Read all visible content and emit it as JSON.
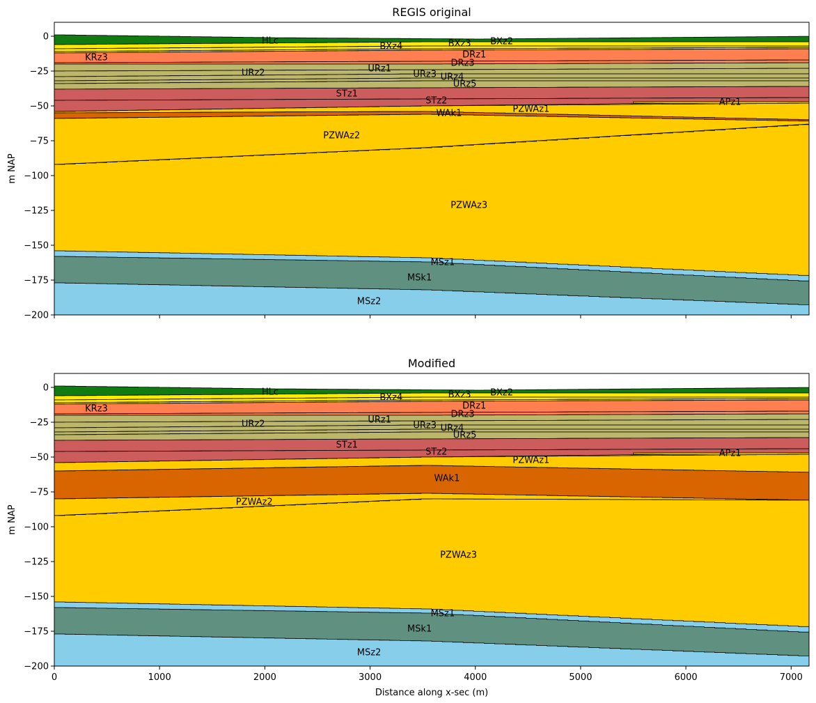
{
  "chart_data": [
    {
      "type": "area",
      "title": "REGIS original",
      "xlabel": "",
      "ylabel": "m NAP",
      "xlim": [
        0,
        7170
      ],
      "ylim": [
        -200,
        10
      ],
      "xticks": [
        0,
        1000,
        2000,
        3000,
        4000,
        5000,
        6000,
        7000
      ],
      "xtick_labels": [],
      "yticks": [
        0,
        -25,
        -50,
        -75,
        -100,
        -125,
        -150,
        -175,
        -200
      ],
      "ytick_labels": [
        "0",
        "−25",
        "−50",
        "−75",
        "−100",
        "−125",
        "−150",
        "−175",
        "−200"
      ],
      "layers": [
        {
          "name": "HLc",
          "color": "#117a11",
          "x": [
            0,
            2000,
            4000,
            7170
          ],
          "top": [
            1,
            -1,
            -2,
            0
          ],
          "bottom": [
            -6,
            -5,
            -4,
            -4
          ]
        },
        {
          "name": "BXz2",
          "color": "#ffeb00",
          "x": [
            0,
            3500,
            7170
          ],
          "top": [
            -6,
            -4,
            -4
          ],
          "bottom": [
            -9,
            -7,
            -7
          ]
        },
        {
          "name": "BXz3",
          "color": "#ffeb00",
          "x": [
            0,
            3500,
            7170
          ],
          "top": [
            -9,
            -7,
            -7
          ],
          "bottom": [
            -11,
            -9,
            -8
          ]
        },
        {
          "name": "BXz4",
          "color": "#ffeb00",
          "x": [
            0,
            3500,
            7170
          ],
          "top": [
            -11,
            -9,
            -8
          ],
          "bottom": [
            -12,
            -10,
            -9
          ]
        },
        {
          "name": "KRz3",
          "color": "#b03060",
          "x": [
            0,
            1000
          ],
          "top": [
            -12,
            -12
          ],
          "bottom": [
            -19,
            -15
          ]
        },
        {
          "name": "DRz1",
          "color": "#ff7f50",
          "x": [
            0,
            3500,
            7170
          ],
          "top": [
            -12,
            -10,
            -9
          ],
          "bottom": [
            -19,
            -18,
            -17
          ]
        },
        {
          "name": "DRz3",
          "color": "#ff7f50",
          "x": [
            0,
            3500,
            7170
          ],
          "top": [
            -19,
            -18,
            -17
          ],
          "bottom": [
            -20,
            -20,
            -19
          ]
        },
        {
          "name": "URz1",
          "color": "#bdb76b",
          "x": [
            0,
            3500,
            7170
          ],
          "top": [
            -20,
            -20,
            -19
          ],
          "bottom": [
            -25,
            -24,
            -23
          ]
        },
        {
          "name": "URz2",
          "color": "#bdb76b",
          "x": [
            0,
            3500,
            7170
          ],
          "top": [
            -25,
            -24,
            -23
          ],
          "bottom": [
            -29,
            -27,
            -27
          ]
        },
        {
          "name": "URz3",
          "color": "#bdb76b",
          "x": [
            0,
            3500,
            7170
          ],
          "top": [
            -29,
            -27,
            -27
          ],
          "bottom": [
            -32,
            -30,
            -30
          ]
        },
        {
          "name": "URz4",
          "color": "#bdb76b",
          "x": [
            0,
            3500,
            7170
          ],
          "top": [
            -32,
            -30,
            -30
          ],
          "bottom": [
            -34,
            -32,
            -32
          ]
        },
        {
          "name": "URz5",
          "color": "#bdb76b",
          "x": [
            0,
            3500,
            7170
          ],
          "top": [
            -34,
            -32,
            -32
          ],
          "bottom": [
            -38,
            -37,
            -36
          ]
        },
        {
          "name": "STz1",
          "color": "#cd5c5c",
          "x": [
            0,
            3500,
            7170
          ],
          "top": [
            -38,
            -37,
            -36
          ],
          "bottom": [
            -46,
            -45,
            -44
          ]
        },
        {
          "name": "STz2",
          "color": "#cd5c5c",
          "x": [
            0,
            3500,
            7170
          ],
          "top": [
            -46,
            -45,
            -44
          ],
          "bottom": [
            -54,
            -50,
            -47
          ]
        },
        {
          "name": "APz1",
          "color": "#ffcc00",
          "x": [
            5500,
            7170
          ],
          "top": [
            -47,
            -47
          ],
          "bottom": [
            -48,
            -49
          ]
        },
        {
          "name": "PZWAz1",
          "color": "#ffcc00",
          "x": [
            0,
            3500,
            7170
          ],
          "top": [
            -54,
            -50,
            -48
          ],
          "bottom": [
            -55,
            -54,
            -60
          ]
        },
        {
          "name": "WAk1",
          "color": "#d96500",
          "x": [
            0,
            3500,
            7170
          ],
          "top": [
            -55,
            -54,
            -60
          ],
          "bottom": [
            -59,
            -56,
            -61
          ]
        },
        {
          "name": "PZWAz2",
          "color": "#ffcc00",
          "x": [
            0,
            3500,
            7170
          ],
          "top": [
            -59,
            -56,
            -61
          ],
          "bottom": [
            -92,
            -80,
            -63
          ]
        },
        {
          "name": "PZWAz3",
          "color": "#ffcc00",
          "x": [
            0,
            3500,
            7170
          ],
          "top": [
            -92,
            -80,
            -63
          ],
          "bottom": [
            -154,
            -159,
            -172
          ]
        },
        {
          "name": "MSz1",
          "color": "#87ceeb",
          "x": [
            0,
            3500,
            7170
          ],
          "top": [
            -154,
            -159,
            -172
          ],
          "bottom": [
            -158,
            -162,
            -176
          ]
        },
        {
          "name": "MSk1",
          "color": "#5f9080",
          "x": [
            0,
            3500,
            7170
          ],
          "top": [
            -158,
            -162,
            -176
          ],
          "bottom": [
            -177,
            -182,
            -193
          ]
        },
        {
          "name": "MSz2",
          "color": "#87ceeb",
          "x": [
            0,
            3500,
            7170
          ],
          "top": [
            -177,
            -182,
            -193
          ],
          "bottom": [
            -200,
            -200,
            -200
          ]
        }
      ],
      "annotations": [
        {
          "text": "HLc",
          "x": 2050,
          "y": -3
        },
        {
          "text": "BXz2",
          "x": 4250,
          "y": -3.5
        },
        {
          "text": "BXz3",
          "x": 3850,
          "y": -5
        },
        {
          "text": "BXz4",
          "x": 3200,
          "y": -7
        },
        {
          "text": "DRz1",
          "x": 3990,
          "y": -13
        },
        {
          "text": "KRz3",
          "x": 400,
          "y": -15
        },
        {
          "text": "DRz3",
          "x": 3880,
          "y": -19
        },
        {
          "text": "URz1",
          "x": 3090,
          "y": -23
        },
        {
          "text": "URz2",
          "x": 1890,
          "y": -26
        },
        {
          "text": "URz3",
          "x": 3520,
          "y": -27
        },
        {
          "text": "URz4",
          "x": 3780,
          "y": -29
        },
        {
          "text": "URz5",
          "x": 3900,
          "y": -34
        },
        {
          "text": "STz1",
          "x": 2780,
          "y": -41
        },
        {
          "text": "STz2",
          "x": 3630,
          "y": -46
        },
        {
          "text": "APz1",
          "x": 6420,
          "y": -47
        },
        {
          "text": "PZWAz1",
          "x": 4530,
          "y": -52
        },
        {
          "text": "WAk1",
          "x": 3750,
          "y": -55
        },
        {
          "text": "PZWAz2",
          "x": 2730,
          "y": -71
        },
        {
          "text": "PZWAz3",
          "x": 3940,
          "y": -121
        },
        {
          "text": "MSz1",
          "x": 3690,
          "y": -162
        },
        {
          "text": "MSk1",
          "x": 3470,
          "y": -173
        },
        {
          "text": "MSz2",
          "x": 2990,
          "y": -190
        }
      ]
    },
    {
      "type": "area",
      "title": "Modified",
      "xlabel": "Distance along x-sec (m)",
      "ylabel": "m NAP",
      "xlim": [
        0,
        7170
      ],
      "ylim": [
        -200,
        10
      ],
      "xticks": [
        0,
        1000,
        2000,
        3000,
        4000,
        5000,
        6000,
        7000
      ],
      "xtick_labels": [
        "0",
        "1000",
        "2000",
        "3000",
        "4000",
        "5000",
        "6000",
        "7000"
      ],
      "yticks": [
        0,
        -25,
        -50,
        -75,
        -100,
        -125,
        -150,
        -175,
        -200
      ],
      "ytick_labels": [
        "0",
        "−25",
        "−50",
        "−75",
        "−100",
        "−125",
        "−150",
        "−175",
        "−200"
      ],
      "layers": [
        {
          "name": "HLc",
          "color": "#117a11",
          "x": [
            0,
            2000,
            4000,
            7170
          ],
          "top": [
            1,
            -1,
            -2,
            0
          ],
          "bottom": [
            -6,
            -5,
            -4,
            -4
          ]
        },
        {
          "name": "BXz2",
          "color": "#ffeb00",
          "x": [
            0,
            3500,
            7170
          ],
          "top": [
            -6,
            -4,
            -4
          ],
          "bottom": [
            -9,
            -7,
            -7
          ]
        },
        {
          "name": "BXz3",
          "color": "#ffeb00",
          "x": [
            0,
            3500,
            7170
          ],
          "top": [
            -9,
            -7,
            -7
          ],
          "bottom": [
            -11,
            -9,
            -8
          ]
        },
        {
          "name": "BXz4",
          "color": "#ffeb00",
          "x": [
            0,
            3500,
            7170
          ],
          "top": [
            -11,
            -9,
            -8
          ],
          "bottom": [
            -12,
            -10,
            -9
          ]
        },
        {
          "name": "KRz3",
          "color": "#b03060",
          "x": [
            0,
            1000
          ],
          "top": [
            -12,
            -12
          ],
          "bottom": [
            -19,
            -15
          ]
        },
        {
          "name": "DRz1",
          "color": "#ff7f50",
          "x": [
            0,
            3500,
            7170
          ],
          "top": [
            -12,
            -10,
            -9
          ],
          "bottom": [
            -19,
            -18,
            -17
          ]
        },
        {
          "name": "DRz3",
          "color": "#ff7f50",
          "x": [
            0,
            3500,
            7170
          ],
          "top": [
            -19,
            -18,
            -17
          ],
          "bottom": [
            -20,
            -20,
            -19
          ]
        },
        {
          "name": "URz1",
          "color": "#bdb76b",
          "x": [
            0,
            3500,
            7170
          ],
          "top": [
            -20,
            -20,
            -19
          ],
          "bottom": [
            -25,
            -24,
            -23
          ]
        },
        {
          "name": "URz2",
          "color": "#bdb76b",
          "x": [
            0,
            3500,
            7170
          ],
          "top": [
            -25,
            -24,
            -23
          ],
          "bottom": [
            -29,
            -27,
            -27
          ]
        },
        {
          "name": "URz3",
          "color": "#bdb76b",
          "x": [
            0,
            3500,
            7170
          ],
          "top": [
            -29,
            -27,
            -27
          ],
          "bottom": [
            -32,
            -30,
            -30
          ]
        },
        {
          "name": "URz4",
          "color": "#bdb76b",
          "x": [
            0,
            3500,
            7170
          ],
          "top": [
            -32,
            -30,
            -30
          ],
          "bottom": [
            -34,
            -32,
            -32
          ]
        },
        {
          "name": "URz5",
          "color": "#bdb76b",
          "x": [
            0,
            3500,
            7170
          ],
          "top": [
            -34,
            -32,
            -32
          ],
          "bottom": [
            -38,
            -37,
            -36
          ]
        },
        {
          "name": "STz1",
          "color": "#cd5c5c",
          "x": [
            0,
            3500,
            7170
          ],
          "top": [
            -38,
            -37,
            -36
          ],
          "bottom": [
            -46,
            -45,
            -44
          ]
        },
        {
          "name": "STz2",
          "color": "#cd5c5c",
          "x": [
            0,
            3500,
            7170
          ],
          "top": [
            -46,
            -45,
            -44
          ],
          "bottom": [
            -54,
            -50,
            -47
          ]
        },
        {
          "name": "APz1",
          "color": "#ffcc00",
          "x": [
            5500,
            7170
          ],
          "top": [
            -47,
            -47
          ],
          "bottom": [
            -48,
            -49
          ]
        },
        {
          "name": "PZWAz1",
          "color": "#ffcc00",
          "x": [
            0,
            3500,
            7170
          ],
          "top": [
            -54,
            -50,
            -48
          ],
          "bottom": [
            -60,
            -56,
            -61
          ]
        },
        {
          "name": "WAk1",
          "color": "#d96500",
          "x": [
            0,
            3500,
            7170
          ],
          "top": [
            -60,
            -56,
            -61
          ],
          "bottom": [
            -80,
            -76,
            -81
          ]
        },
        {
          "name": "PZWAz2",
          "color": "#ffcc00",
          "x": [
            0,
            3500,
            7170
          ],
          "top": [
            -80,
            -76,
            -81
          ],
          "bottom": [
            -92,
            -80,
            -81
          ]
        },
        {
          "name": "PZWAz3",
          "color": "#ffcc00",
          "x": [
            0,
            3500,
            7170
          ],
          "top": [
            -92,
            -80,
            -81
          ],
          "bottom": [
            -154,
            -159,
            -172
          ]
        },
        {
          "name": "MSz1",
          "color": "#87ceeb",
          "x": [
            0,
            3500,
            7170
          ],
          "top": [
            -154,
            -159,
            -172
          ],
          "bottom": [
            -158,
            -162,
            -176
          ]
        },
        {
          "name": "MSk1",
          "color": "#5f9080",
          "x": [
            0,
            3500,
            7170
          ],
          "top": [
            -158,
            -162,
            -176
          ],
          "bottom": [
            -177,
            -182,
            -193
          ]
        },
        {
          "name": "MSz2",
          "color": "#87ceeb",
          "x": [
            0,
            3500,
            7170
          ],
          "top": [
            -177,
            -182,
            -193
          ],
          "bottom": [
            -200,
            -200,
            -200
          ]
        }
      ],
      "annotations": [
        {
          "text": "HLc",
          "x": 2050,
          "y": -3
        },
        {
          "text": "BXz2",
          "x": 4250,
          "y": -3.5
        },
        {
          "text": "BXz3",
          "x": 3850,
          "y": -5
        },
        {
          "text": "BXz4",
          "x": 3200,
          "y": -7
        },
        {
          "text": "DRz1",
          "x": 3990,
          "y": -13
        },
        {
          "text": "KRz3",
          "x": 400,
          "y": -15
        },
        {
          "text": "DRz3",
          "x": 3880,
          "y": -19
        },
        {
          "text": "URz1",
          "x": 3090,
          "y": -23
        },
        {
          "text": "URz2",
          "x": 1890,
          "y": -26
        },
        {
          "text": "URz3",
          "x": 3520,
          "y": -27
        },
        {
          "text": "URz4",
          "x": 3780,
          "y": -29
        },
        {
          "text": "URz5",
          "x": 3900,
          "y": -34
        },
        {
          "text": "STz1",
          "x": 2780,
          "y": -41
        },
        {
          "text": "STz2",
          "x": 3630,
          "y": -46
        },
        {
          "text": "APz1",
          "x": 6420,
          "y": -47
        },
        {
          "text": "PZWAz1",
          "x": 4530,
          "y": -52
        },
        {
          "text": "WAk1",
          "x": 3730,
          "y": -65
        },
        {
          "text": "PZWAz2",
          "x": 1900,
          "y": -82
        },
        {
          "text": "PZWAz3",
          "x": 3840,
          "y": -120
        },
        {
          "text": "MSz1",
          "x": 3690,
          "y": -162
        },
        {
          "text": "MSk1",
          "x": 3470,
          "y": -173
        },
        {
          "text": "MSz2",
          "x": 2990,
          "y": -190
        }
      ]
    }
  ]
}
